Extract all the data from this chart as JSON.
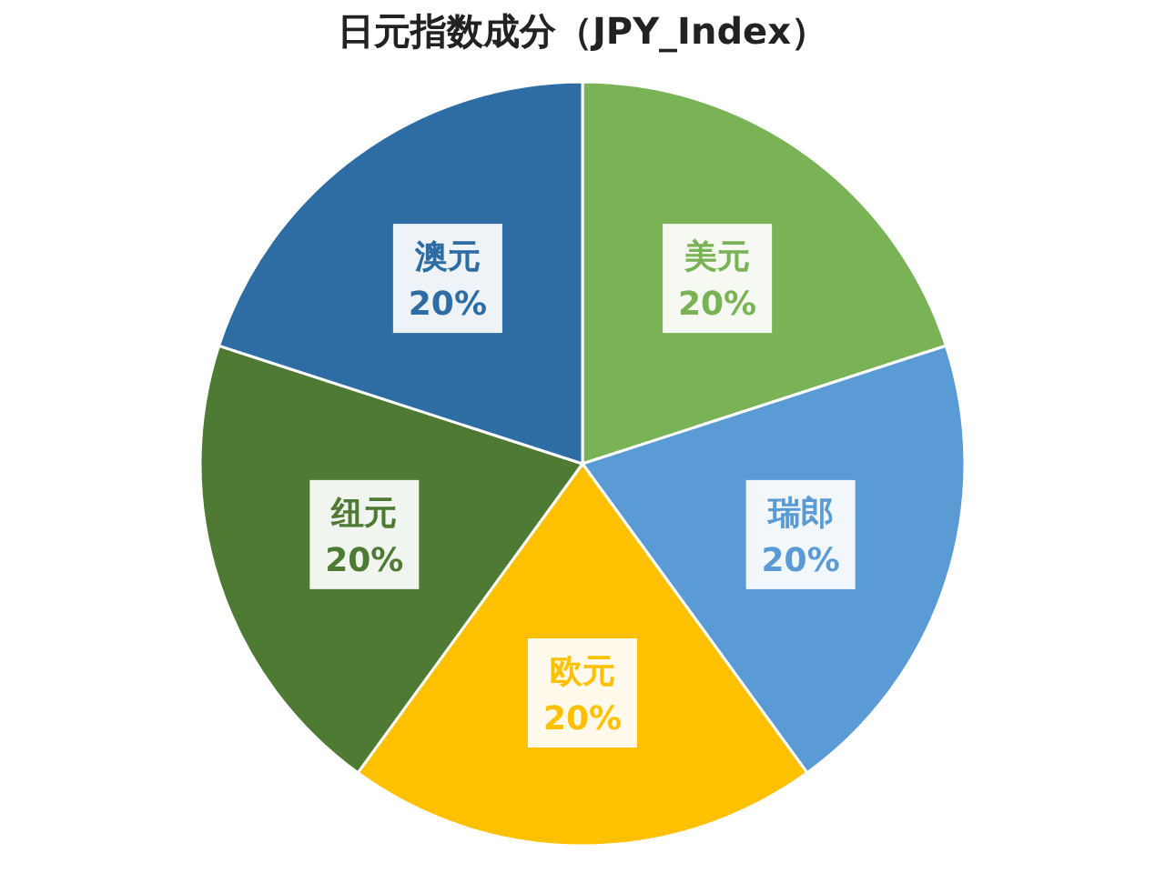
{
  "chart_data": {
    "type": "pie",
    "title": "日元指数成分（JPY_Index）",
    "categories": [
      "美元",
      "瑞郎",
      "欧元",
      "纽元",
      "澳元"
    ],
    "values": [
      20,
      20,
      20,
      20,
      20
    ],
    "value_labels": [
      "20%",
      "20%",
      "20%",
      "20%",
      "20%"
    ],
    "colors": [
      "#7ab356",
      "#5b9bd5",
      "#ffc000",
      "#4e7a34",
      "#2e6da4"
    ]
  }
}
